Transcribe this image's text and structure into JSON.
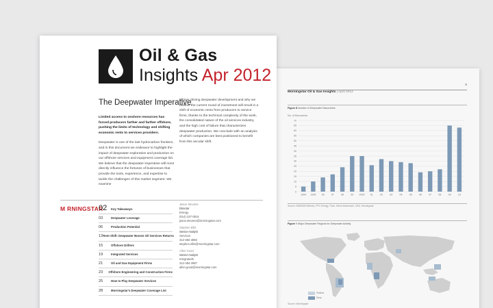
{
  "page2": {
    "header": {
      "brand": "Morningstar Oil & Gas Insights",
      "date": " | April 2012",
      "page_number": "6"
    },
    "figure1": {
      "title_bold": "Figure 8",
      "title_text": " Number of Deepwater Discoveries",
      "source": "Source: EMEW/IHSWorks, PFC Energy, Paris, Wood Mackenzie, OEA, Morningstar"
    },
    "figure2": {
      "title_bold": "Figure",
      "title_text": " 9 Major Deepwater Regions for Deepwater Activity",
      "source": "Source: Morningstar",
      "legend": [
        "Shallow",
        "Deep"
      ]
    },
    "map_colors": {
      "land": "#cfcfcf",
      "deep": "#7d99b5",
      "mid": "#a8bccf"
    }
  },
  "page1": {
    "title_line1": "Oil & Gas",
    "title_line2_black": "Insights ",
    "title_line2_red": "Apr 2012",
    "section_title": "The Deepwater Imperative",
    "col1": {
      "lead": "Limited access to onshore resources has forced producers farther and farther offshore, pushing the limits of technology and shifting economic rents to services providers.",
      "para1": "Deepwater is one of the last hydrocarbon frontiers, and in this document we endeavor to highlight the impact of deepwater exploration and production on our offshore services and equipment coverage list. We believe that the deepwater imperative will most directly influence the fortunes of businesses that provide the tools, experience, and expertise to tackle the challenges of this market segment. We examine"
    },
    "col2": {
      "para1": "factors driving deepwater development and why we believe the current round of investment will result in a shift of economic rents from producers to service firms, thanks to the technical complexity of the work, the consolidated nature of the oil services industry, and the high cost of failure that characterizes deepwater production. We conclude with an analysis of which companies are best positioned to benefit from this secular shift."
    },
    "brand": "M RNINGSTAR",
    "toc": [
      {
        "num": "02",
        "title": "Key Takeaways"
      },
      {
        "num": "03",
        "title": "Deepwater Leverage"
      },
      {
        "num": "06",
        "title": "Production Potential"
      },
      {
        "num": "12",
        "title": "Rent Shift: Deepwater Boosts Oil Services Returns"
      },
      {
        "num": "15",
        "title": "Offshore Drillers"
      },
      {
        "num": "19",
        "title": "Integrated Services"
      },
      {
        "num": "21",
        "title": "Oil and Gas Equipment Firms"
      },
      {
        "num": "23",
        "title": "Offshore Engineering and Construction Firms"
      },
      {
        "num": "25",
        "title": "How to Play Deepwater Services"
      },
      {
        "num": "28",
        "title": "Morningstar's Deepwater Coverage List"
      }
    ],
    "contacts": [
      {
        "name": "Jason Stevens",
        "role": "Director",
        "group": "Energy",
        "phone": "(614) 237-0814",
        "email": "jason.stevens@morningstar.com"
      },
      {
        "name": "Stephen Ellis",
        "role": "Senior Analyst",
        "group": "Services",
        "phone": "312-384-4882",
        "email": "stephen.ellis@morningstar.com"
      },
      {
        "name": "Allen Good",
        "role": "Senior Analyst",
        "group": "Integrateds",
        "phone": "312-384-3987",
        "email": "allen.good@morningstar.com"
      }
    ],
    "colors": {
      "accent_red": "#c3232b",
      "logo_bg": "#1a1a1a"
    }
  },
  "chart_data": {
    "type": "bar",
    "title": "Number of Deepwater Discoveries",
    "ylabel": "No. of Discoveries",
    "categories": [
      "1994",
      "1995",
      "96",
      "97",
      "98",
      "99",
      "2000",
      "01",
      "02",
      "03",
      "04",
      "05",
      "06",
      "07",
      "08",
      "09",
      "10"
    ],
    "values": [
      5,
      10,
      14,
      17,
      24,
      35,
      35,
      26,
      32,
      30,
      29,
      28,
      19,
      20,
      22,
      65,
      63
    ],
    "y_ticks": [
      "70",
      "65",
      "60",
      "55",
      "50",
      "45",
      "40",
      "35",
      "30",
      "25",
      "20",
      "15",
      "10",
      "5",
      "0"
    ],
    "ylim": [
      0,
      70
    ],
    "grid": true,
    "bar_color": "#7d99b5"
  }
}
